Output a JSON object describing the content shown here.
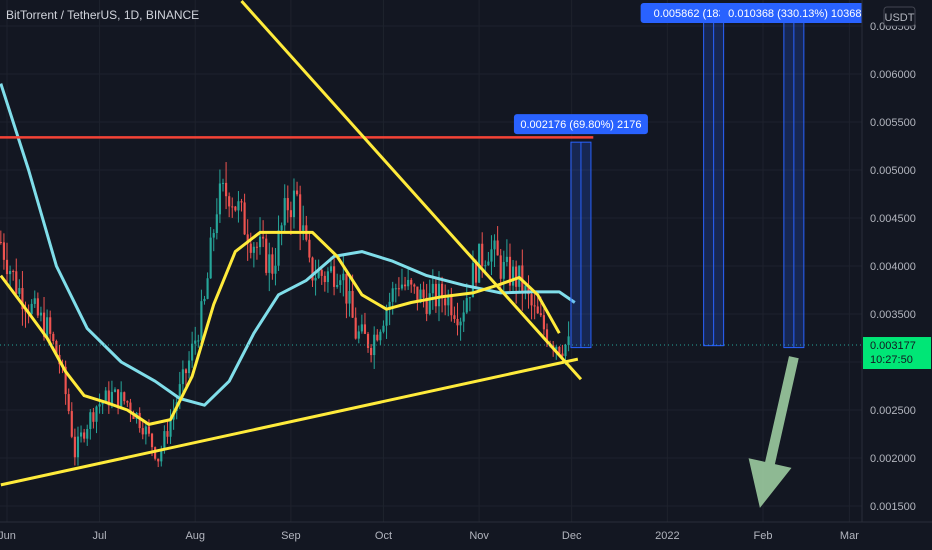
{
  "chart_data": {
    "type": "candlestick",
    "title": "BitTorrent / TetherUS, 1D, BINANCE",
    "currency": "USDT",
    "x_tick_labels": [
      "Jun",
      "Jul",
      "Aug",
      "Sep",
      "Oct",
      "Nov",
      "Dec",
      "2022",
      "Feb",
      "Mar"
    ],
    "y_tick_labels": [
      "0.006500",
      "0.006000",
      "0.005500",
      "0.005000",
      "0.004500",
      "0.004000",
      "0.003500",
      "0.003000",
      "0.002500",
      "0.002000",
      "0.001500"
    ],
    "y_ticks": [
      0.0065,
      0.006,
      0.0055,
      0.005,
      0.0045,
      0.004,
      0.0035,
      0.003,
      0.0025,
      0.002,
      0.0015
    ],
    "ylim": [
      0.00135,
      0.00676
    ],
    "current_price": "0.003177",
    "current_price_value": 0.003177,
    "countdown": "10:27:50",
    "colors": {
      "background": "#131722",
      "up": "#26a69a",
      "down": "#ef5350",
      "ma_fast": "#ffeb3b",
      "ma_slow": "#80deea",
      "trendline": "#ffeb3b",
      "resistance": "#f44336",
      "projection": "#2962ff",
      "arrow": "#a5d6a7",
      "price_tag": "#00e676"
    },
    "resistance_level": 0.00534,
    "close_series": [
      {
        "t": "2021-05-30",
        "c": 0.00425
      },
      {
        "t": "2021-06-04",
        "c": 0.0038
      },
      {
        "t": "2021-06-09",
        "c": 0.00355
      },
      {
        "t": "2021-06-14",
        "c": 0.00335
      },
      {
        "t": "2021-06-18",
        "c": 0.003
      },
      {
        "t": "2021-06-21",
        "c": 0.0025
      },
      {
        "t": "2021-06-23",
        "c": 0.00205
      },
      {
        "t": "2021-06-26",
        "c": 0.0023
      },
      {
        "t": "2021-06-30",
        "c": 0.00255
      },
      {
        "t": "2021-07-05",
        "c": 0.00265
      },
      {
        "t": "2021-07-10",
        "c": 0.00258
      },
      {
        "t": "2021-07-15",
        "c": 0.00235
      },
      {
        "t": "2021-07-20",
        "c": 0.002
      },
      {
        "t": "2021-07-25",
        "c": 0.0025
      },
      {
        "t": "2021-07-30",
        "c": 0.003
      },
      {
        "t": "2021-08-04",
        "c": 0.0036
      },
      {
        "t": "2021-08-08",
        "c": 0.00465
      },
      {
        "t": "2021-08-12",
        "c": 0.0048
      },
      {
        "t": "2021-08-16",
        "c": 0.0045
      },
      {
        "t": "2021-08-21",
        "c": 0.0042
      },
      {
        "t": "2021-08-26",
        "c": 0.004
      },
      {
        "t": "2021-08-31",
        "c": 0.00465
      },
      {
        "t": "2021-09-03",
        "c": 0.0047
      },
      {
        "t": "2021-09-07",
        "c": 0.00395
      },
      {
        "t": "2021-09-12",
        "c": 0.0039
      },
      {
        "t": "2021-09-17",
        "c": 0.004
      },
      {
        "t": "2021-09-22",
        "c": 0.0033
      },
      {
        "t": "2021-09-27",
        "c": 0.0032
      },
      {
        "t": "2021-10-01",
        "c": 0.0035
      },
      {
        "t": "2021-10-06",
        "c": 0.00385
      },
      {
        "t": "2021-10-11",
        "c": 0.0037
      },
      {
        "t": "2021-10-16",
        "c": 0.00365
      },
      {
        "t": "2021-10-21",
        "c": 0.0037
      },
      {
        "t": "2021-10-26",
        "c": 0.0035
      },
      {
        "t": "2021-10-31",
        "c": 0.004
      },
      {
        "t": "2021-11-04",
        "c": 0.0042
      },
      {
        "t": "2021-11-09",
        "c": 0.00395
      },
      {
        "t": "2021-11-14",
        "c": 0.00385
      },
      {
        "t": "2021-11-19",
        "c": 0.0035
      },
      {
        "t": "2021-11-24",
        "c": 0.00325
      },
      {
        "t": "2021-11-27",
        "c": 0.00318
      },
      {
        "t": "2021-11-30",
        "c": 0.00317
      }
    ],
    "ma_fast": [
      {
        "t": "2021-05-30",
        "v": 0.0039
      },
      {
        "t": "2021-06-06",
        "v": 0.0036
      },
      {
        "t": "2021-06-14",
        "v": 0.00325
      },
      {
        "t": "2021-06-20",
        "v": 0.0029
      },
      {
        "t": "2021-06-26",
        "v": 0.00265
      },
      {
        "t": "2021-07-03",
        "v": 0.00258
      },
      {
        "t": "2021-07-10",
        "v": 0.0025
      },
      {
        "t": "2021-07-17",
        "v": 0.00235
      },
      {
        "t": "2021-07-24",
        "v": 0.0024
      },
      {
        "t": "2021-07-31",
        "v": 0.00285
      },
      {
        "t": "2021-08-07",
        "v": 0.0036
      },
      {
        "t": "2021-08-14",
        "v": 0.00415
      },
      {
        "t": "2021-08-22",
        "v": 0.00435
      },
      {
        "t": "2021-08-31",
        "v": 0.00435
      },
      {
        "t": "2021-09-08",
        "v": 0.00435
      },
      {
        "t": "2021-09-16",
        "v": 0.0041
      },
      {
        "t": "2021-09-24",
        "v": 0.0037
      },
      {
        "t": "2021-10-02",
        "v": 0.00355
      },
      {
        "t": "2021-10-10",
        "v": 0.00362
      },
      {
        "t": "2021-10-20",
        "v": 0.00368
      },
      {
        "t": "2021-10-30",
        "v": 0.00372
      },
      {
        "t": "2021-11-07",
        "v": 0.0038
      },
      {
        "t": "2021-11-14",
        "v": 0.00388
      },
      {
        "t": "2021-11-20",
        "v": 0.0037
      },
      {
        "t": "2021-11-27",
        "v": 0.0033
      }
    ],
    "ma_slow": [
      {
        "t": "2021-05-30",
        "v": 0.0059
      },
      {
        "t": "2021-06-08",
        "v": 0.005
      },
      {
        "t": "2021-06-17",
        "v": 0.004
      },
      {
        "t": "2021-06-27",
        "v": 0.00335
      },
      {
        "t": "2021-07-08",
        "v": 0.003
      },
      {
        "t": "2021-07-19",
        "v": 0.0028
      },
      {
        "t": "2021-07-27",
        "v": 0.00262
      },
      {
        "t": "2021-08-04",
        "v": 0.00255
      },
      {
        "t": "2021-08-12",
        "v": 0.0028
      },
      {
        "t": "2021-08-20",
        "v": 0.0033
      },
      {
        "t": "2021-08-28",
        "v": 0.0037
      },
      {
        "t": "2021-09-06",
        "v": 0.00385
      },
      {
        "t": "2021-09-15",
        "v": 0.0041
      },
      {
        "t": "2021-09-24",
        "v": 0.00415
      },
      {
        "t": "2021-10-04",
        "v": 0.00405
      },
      {
        "t": "2021-10-15",
        "v": 0.0039
      },
      {
        "t": "2021-10-27",
        "v": 0.0038
      },
      {
        "t": "2021-11-08",
        "v": 0.00372
      },
      {
        "t": "2021-11-18",
        "v": 0.00373
      },
      {
        "t": "2021-11-27",
        "v": 0.00373
      },
      {
        "t": "2021-12-02",
        "v": 0.00362
      }
    ],
    "trendlines": [
      {
        "name": "support",
        "from": {
          "t": "2021-05-30",
          "v": 0.00172
        },
        "to": {
          "t": "2021-12-03",
          "v": 0.00303
        }
      },
      {
        "name": "descending-resistance",
        "from": {
          "t": "2021-08-16",
          "v": 0.00676
        },
        "to": {
          "t": "2021-12-04",
          "v": 0.00282
        }
      }
    ],
    "projections": [
      {
        "label": "0.002176 (69.80%) 2176",
        "t": "2021-12-04",
        "from": 0.00315,
        "to": 0.00529
      },
      {
        "label": "0.005862 (183.",
        "t": "2022-01-16",
        "from": 0.00317,
        "to": 0.0066
      },
      {
        "label": "0.010368 (330.13%) 10368",
        "t": "2022-02-11",
        "from": 0.00315,
        "to": 0.0066
      }
    ],
    "arrow": {
      "from": {
        "t": "2022-02-11",
        "v": 0.00305
      },
      "to": {
        "t": "2022-01-31",
        "v": 0.00148
      }
    }
  }
}
